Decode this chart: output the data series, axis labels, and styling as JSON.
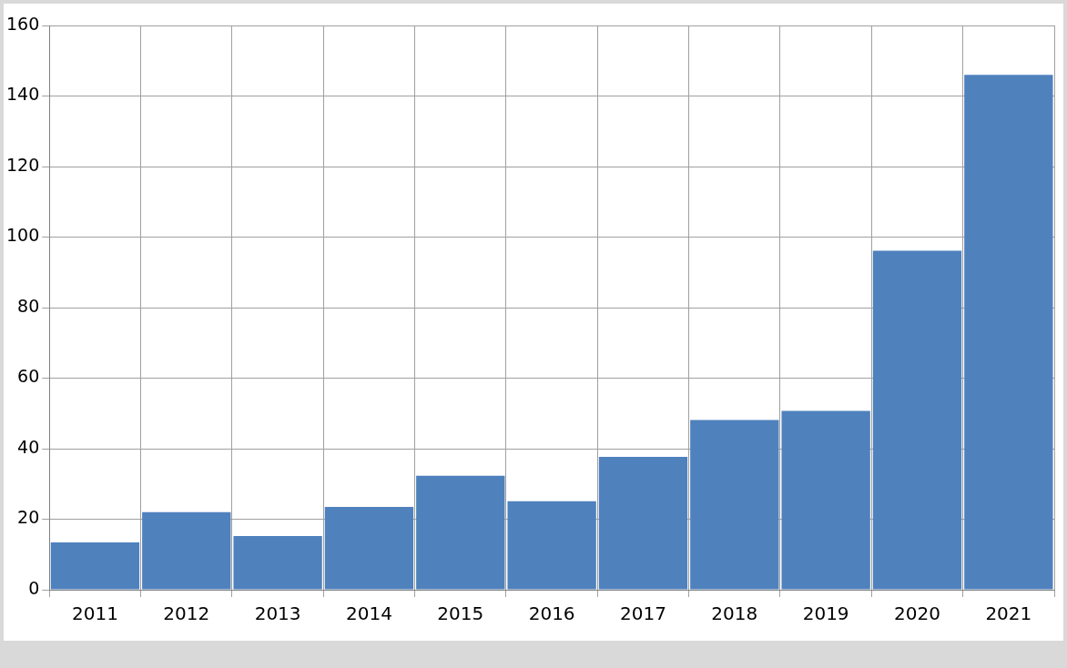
{
  "chart_data": {
    "type": "bar",
    "categories": [
      "2011",
      "2012",
      "2013",
      "2014",
      "2015",
      "2016",
      "2017",
      "2018",
      "2019",
      "2020",
      "2021"
    ],
    "values": [
      13.4,
      22,
      15.2,
      23.5,
      32.3,
      25.1,
      37.7,
      48.1,
      50.7,
      96.1,
      146
    ],
    "color": "#4f81bd",
    "ylim": [
      0,
      160
    ],
    "yticks": [
      0,
      20,
      40,
      60,
      80,
      100,
      120,
      140,
      160
    ],
    "grid": true,
    "legend": false
  }
}
